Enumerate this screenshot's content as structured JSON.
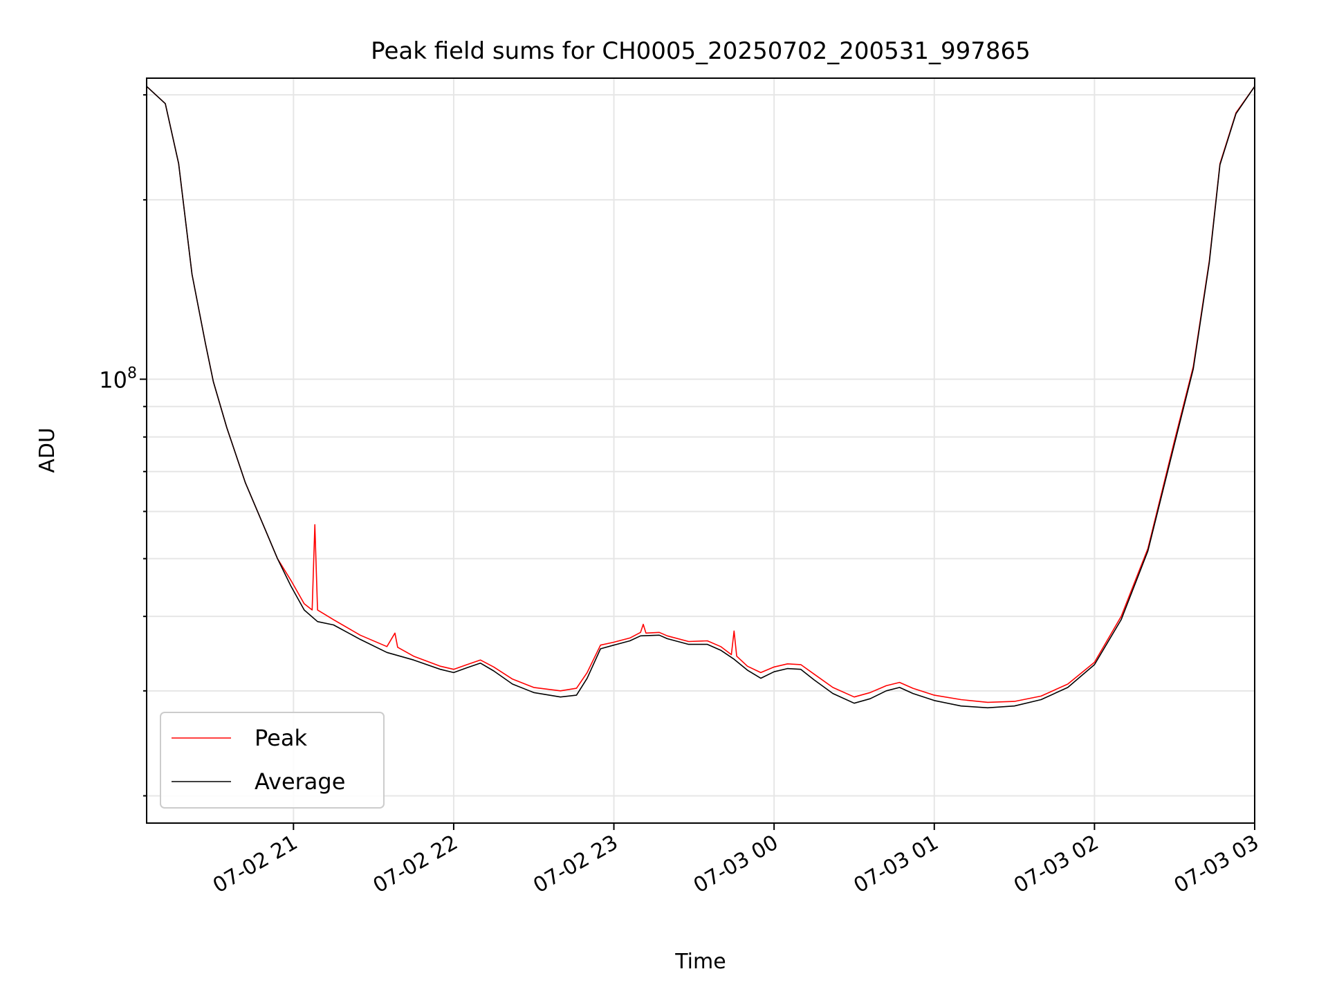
{
  "chart_data": {
    "type": "line",
    "title": "Peak field sums for CH0005_20250702_200531_997865",
    "xlabel": "Time",
    "ylabel": "ADU",
    "y_scale": "log",
    "y_tick_label": {
      "base": "10",
      "exp": "8"
    },
    "ylim": [
      18000000,
      320000000
    ],
    "xlim": [
      "2025-07-02 20:05",
      "2025-07-03 03:00"
    ],
    "x_ticks": [
      {
        "t": "2025-07-02 21:00",
        "label": "07-02 21"
      },
      {
        "t": "2025-07-02 22:00",
        "label": "07-02 22"
      },
      {
        "t": "2025-07-02 23:00",
        "label": "07-02 23"
      },
      {
        "t": "2025-07-03 00:00",
        "label": "07-03 00"
      },
      {
        "t": "2025-07-03 01:00",
        "label": "07-03 01"
      },
      {
        "t": "2025-07-03 02:00",
        "label": "07-03 02"
      },
      {
        "t": "2025-07-03 03:00",
        "label": "07-03 03"
      }
    ],
    "grid": true,
    "legend_position": "lower-left",
    "series": [
      {
        "name": "Peak",
        "color": "#ff0000",
        "points": [
          [
            "2025-07-02 20:05",
            310000000
          ],
          [
            "2025-07-02 20:12",
            290000000
          ],
          [
            "2025-07-02 20:17",
            230000000
          ],
          [
            "2025-07-02 20:22",
            150000000
          ],
          [
            "2025-07-02 20:27",
            115000000
          ],
          [
            "2025-07-02 20:30",
            99000000
          ],
          [
            "2025-07-02 20:35",
            83000000
          ],
          [
            "2025-07-02 20:42",
            67000000
          ],
          [
            "2025-07-02 20:49",
            56500000
          ],
          [
            "2025-07-02 20:54",
            50000000
          ],
          [
            "2025-07-02 20:59",
            46000000
          ],
          [
            "2025-07-02 21:04",
            42000000
          ],
          [
            "2025-07-02 21:07",
            41000000
          ],
          [
            "2025-07-02 21:08",
            57000000
          ],
          [
            "2025-07-02 21:09",
            41000000
          ],
          [
            "2025-07-02 21:15",
            39500000
          ],
          [
            "2025-07-02 21:25",
            37200000
          ],
          [
            "2025-07-02 21:35",
            35600000
          ],
          [
            "2025-07-02 21:38",
            37500000
          ],
          [
            "2025-07-02 21:39",
            35500000
          ],
          [
            "2025-07-02 21:45",
            34300000
          ],
          [
            "2025-07-02 21:55",
            33000000
          ],
          [
            "2025-07-02 22:00",
            32600000
          ],
          [
            "2025-07-02 22:05",
            33200000
          ],
          [
            "2025-07-02 22:10",
            33800000
          ],
          [
            "2025-07-02 22:15",
            32900000
          ],
          [
            "2025-07-02 22:22",
            31400000
          ],
          [
            "2025-07-02 22:30",
            30400000
          ],
          [
            "2025-07-02 22:40",
            30000000
          ],
          [
            "2025-07-02 22:46",
            30300000
          ],
          [
            "2025-07-02 22:50",
            32200000
          ],
          [
            "2025-07-02 22:55",
            35800000
          ],
          [
            "2025-07-02 23:00",
            36200000
          ],
          [
            "2025-07-02 23:06",
            36800000
          ],
          [
            "2025-07-02 23:10",
            37600000
          ],
          [
            "2025-07-02 23:11",
            38800000
          ],
          [
            "2025-07-02 23:12",
            37500000
          ],
          [
            "2025-07-02 23:17",
            37600000
          ],
          [
            "2025-07-02 23:20",
            37100000
          ],
          [
            "2025-07-02 23:28",
            36300000
          ],
          [
            "2025-07-02 23:35",
            36400000
          ],
          [
            "2025-07-02 23:40",
            35600000
          ],
          [
            "2025-07-02 23:44",
            34500000
          ],
          [
            "2025-07-02 23:45",
            37800000
          ],
          [
            "2025-07-02 23:46",
            34300000
          ],
          [
            "2025-07-02 23:50",
            33000000
          ],
          [
            "2025-07-02 23:55",
            32200000
          ],
          [
            "2025-07-03 00:00",
            32900000
          ],
          [
            "2025-07-03 00:05",
            33300000
          ],
          [
            "2025-07-03 00:10",
            33200000
          ],
          [
            "2025-07-03 00:15",
            32000000
          ],
          [
            "2025-07-03 00:22",
            30400000
          ],
          [
            "2025-07-03 00:30",
            29300000
          ],
          [
            "2025-07-03 00:36",
            29800000
          ],
          [
            "2025-07-03 00:42",
            30600000
          ],
          [
            "2025-07-03 00:47",
            31000000
          ],
          [
            "2025-07-03 00:52",
            30300000
          ],
          [
            "2025-07-03 01:00",
            29500000
          ],
          [
            "2025-07-03 01:10",
            29000000
          ],
          [
            "2025-07-03 01:20",
            28700000
          ],
          [
            "2025-07-03 01:30",
            28800000
          ],
          [
            "2025-07-03 01:40",
            29400000
          ],
          [
            "2025-07-03 01:50",
            30800000
          ],
          [
            "2025-07-03 02:00",
            33500000
          ],
          [
            "2025-07-03 02:10",
            40000000
          ],
          [
            "2025-07-03 02:20",
            52000000
          ],
          [
            "2025-07-03 02:30",
            79000000
          ],
          [
            "2025-07-03 02:37",
            105000000
          ],
          [
            "2025-07-03 02:43",
            158000000
          ],
          [
            "2025-07-03 02:47",
            230000000
          ],
          [
            "2025-07-03 02:53",
            280000000
          ],
          [
            "2025-07-03 03:00",
            310000000
          ]
        ]
      },
      {
        "name": "Average",
        "color": "#000000",
        "points": [
          [
            "2025-07-02 20:05",
            310000000
          ],
          [
            "2025-07-02 20:12",
            290000000
          ],
          [
            "2025-07-02 20:17",
            230000000
          ],
          [
            "2025-07-02 20:22",
            150000000
          ],
          [
            "2025-07-02 20:27",
            115000000
          ],
          [
            "2025-07-02 20:30",
            99000000
          ],
          [
            "2025-07-02 20:35",
            83000000
          ],
          [
            "2025-07-02 20:42",
            67000000
          ],
          [
            "2025-07-02 20:49",
            56500000
          ],
          [
            "2025-07-02 20:54",
            50000000
          ],
          [
            "2025-07-02 20:59",
            45000000
          ],
          [
            "2025-07-02 21:04",
            41000000
          ],
          [
            "2025-07-02 21:09",
            39200000
          ],
          [
            "2025-07-02 21:15",
            38700000
          ],
          [
            "2025-07-02 21:25",
            36600000
          ],
          [
            "2025-07-02 21:35",
            34800000
          ],
          [
            "2025-07-02 21:45",
            33800000
          ],
          [
            "2025-07-02 21:55",
            32600000
          ],
          [
            "2025-07-02 22:00",
            32200000
          ],
          [
            "2025-07-02 22:05",
            32800000
          ],
          [
            "2025-07-02 22:10",
            33400000
          ],
          [
            "2025-07-02 22:15",
            32400000
          ],
          [
            "2025-07-02 22:22",
            30800000
          ],
          [
            "2025-07-02 22:30",
            29800000
          ],
          [
            "2025-07-02 22:40",
            29300000
          ],
          [
            "2025-07-02 22:46",
            29500000
          ],
          [
            "2025-07-02 22:50",
            31500000
          ],
          [
            "2025-07-02 22:55",
            35300000
          ],
          [
            "2025-07-02 23:00",
            35800000
          ],
          [
            "2025-07-02 23:06",
            36400000
          ],
          [
            "2025-07-02 23:10",
            37100000
          ],
          [
            "2025-07-02 23:17",
            37200000
          ],
          [
            "2025-07-02 23:20",
            36700000
          ],
          [
            "2025-07-02 23:28",
            35900000
          ],
          [
            "2025-07-02 23:35",
            35900000
          ],
          [
            "2025-07-02 23:40",
            35100000
          ],
          [
            "2025-07-02 23:45",
            33900000
          ],
          [
            "2025-07-02 23:50",
            32500000
          ],
          [
            "2025-07-02 23:55",
            31500000
          ],
          [
            "2025-07-03 00:00",
            32300000
          ],
          [
            "2025-07-03 00:05",
            32700000
          ],
          [
            "2025-07-03 00:10",
            32600000
          ],
          [
            "2025-07-03 00:15",
            31300000
          ],
          [
            "2025-07-03 00:22",
            29700000
          ],
          [
            "2025-07-03 00:30",
            28600000
          ],
          [
            "2025-07-03 00:36",
            29100000
          ],
          [
            "2025-07-03 00:42",
            30000000
          ],
          [
            "2025-07-03 00:47",
            30400000
          ],
          [
            "2025-07-03 00:52",
            29700000
          ],
          [
            "2025-07-03 01:00",
            28900000
          ],
          [
            "2025-07-03 01:10",
            28300000
          ],
          [
            "2025-07-03 01:20",
            28100000
          ],
          [
            "2025-07-03 01:30",
            28300000
          ],
          [
            "2025-07-03 01:40",
            29000000
          ],
          [
            "2025-07-03 01:50",
            30400000
          ],
          [
            "2025-07-03 02:00",
            33200000
          ],
          [
            "2025-07-03 02:10",
            39500000
          ],
          [
            "2025-07-03 02:20",
            51500000
          ],
          [
            "2025-07-03 02:30",
            78000000
          ],
          [
            "2025-07-03 02:37",
            104000000
          ],
          [
            "2025-07-03 02:43",
            157000000
          ],
          [
            "2025-07-03 02:47",
            229000000
          ],
          [
            "2025-07-03 02:53",
            279000000
          ],
          [
            "2025-07-03 03:00",
            310000000
          ]
        ]
      }
    ]
  }
}
